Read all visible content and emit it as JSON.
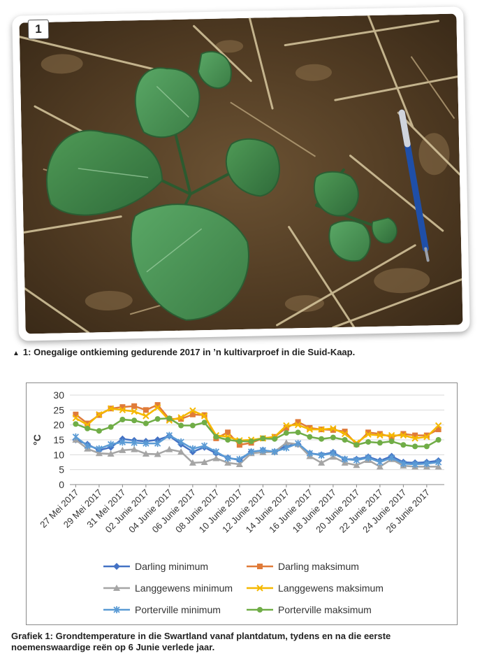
{
  "photo": {
    "number": "1",
    "caption": "1: Onegalige ontkieming gedurende 2017 in ’n kultivarproef in die Suid-Kaap.",
    "caption_marker": "▲"
  },
  "figure_caption": "Grafiek 1: Grondtemperature in die Swartland vanaf plantdatum, tydens en na die eerste noemenswaardige reën op 6 Junie verlede jaar.",
  "chart_data": {
    "type": "line",
    "title": "",
    "xlabel": "",
    "ylabel": "°C",
    "ylim": [
      0,
      30
    ],
    "yticks": [
      0,
      5,
      10,
      15,
      20,
      25,
      30
    ],
    "grid": true,
    "legend_position": "bottom",
    "x_tick_labels": [
      "27 Mei 2017",
      "29 Mei 2017",
      "31 Mei 2017",
      "02 Junie 2017",
      "04 Junie 2017",
      "06 Junie 2017",
      "08 Junie 2017",
      "10 Junie 2017",
      "12 Junie 2017",
      "14 Junie 2017",
      "16 Junie 2017",
      "18 Junie 2017",
      "20 Junie 2017",
      "22 Junie 2017",
      "24 Junie 2017",
      "26 Junie 2017"
    ],
    "x": [
      "2017-05-27",
      "2017-05-28",
      "2017-05-29",
      "2017-05-30",
      "2017-05-31",
      "2017-06-01",
      "2017-06-02",
      "2017-06-03",
      "2017-06-04",
      "2017-06-05",
      "2017-06-06",
      "2017-06-07",
      "2017-06-08",
      "2017-06-09",
      "2017-06-10",
      "2017-06-11",
      "2017-06-12",
      "2017-06-13",
      "2017-06-14",
      "2017-06-15",
      "2017-06-16",
      "2017-06-17",
      "2017-06-18",
      "2017-06-19",
      "2017-06-20",
      "2017-06-21",
      "2017-06-22",
      "2017-06-23",
      "2017-06-24",
      "2017-06-25",
      "2017-06-26",
      "2017-06-27"
    ],
    "series": [
      {
        "name": "Darling minimum",
        "color": "#4472c4",
        "marker": "diamond",
        "values": [
          15,
          13.5,
          11.5,
          12.5,
          15.3,
          14.8,
          14.5,
          15,
          16.3,
          13.5,
          11,
          12.5,
          10.5,
          9,
          8.2,
          11,
          11.5,
          11,
          13,
          13.5,
          10.5,
          10,
          10.8,
          8.5,
          8.5,
          9.3,
          8,
          9.5,
          7.5,
          7.3,
          7.5,
          8
        ]
      },
      {
        "name": "Darling maksimum",
        "color": "#e07b39",
        "marker": "square",
        "values": [
          23.5,
          20.5,
          23.3,
          25.5,
          26,
          26.3,
          25,
          26.7,
          22,
          22,
          23.5,
          23.3,
          15.5,
          17.5,
          13.3,
          14,
          15.5,
          16,
          19,
          21,
          19,
          18.5,
          18.3,
          17.8,
          13.5,
          17.5,
          17,
          16,
          17,
          16.5,
          16.5,
          18.5
        ]
      },
      {
        "name": "Langgewens minimum",
        "color": "#a5a5a5",
        "marker": "triangle",
        "values": [
          15,
          12,
          10.5,
          10.3,
          11.5,
          11.8,
          10.3,
          10.2,
          11.8,
          11,
          7.3,
          7.5,
          8.8,
          7.3,
          6.8,
          10.5,
          10.8,
          11,
          14,
          13.5,
          9.5,
          7.3,
          9.3,
          7.3,
          6.5,
          8.2,
          6,
          8.5,
          6.3,
          6,
          6,
          6
        ]
      },
      {
        "name": "Langgewens maksimum",
        "color": "#f5b800",
        "marker": "x",
        "values": [
          22.3,
          20,
          23.5,
          25.5,
          25,
          24.5,
          23,
          25.8,
          21.5,
          22.5,
          24.8,
          23,
          16.5,
          16,
          14.8,
          15,
          15.5,
          16,
          19.8,
          20,
          18.5,
          18.5,
          18.8,
          17,
          14,
          16.8,
          16.5,
          16.5,
          16.5,
          15.5,
          16,
          19.8
        ]
      },
      {
        "name": "Porterville minimum",
        "color": "#5b9bd5",
        "marker": "star",
        "values": [
          16,
          13,
          12,
          13.5,
          14.2,
          14,
          13.8,
          13.8,
          16.5,
          14.3,
          12,
          13,
          11,
          8.8,
          8.5,
          11,
          11.5,
          11,
          12.3,
          13.8,
          10.5,
          9.8,
          10.5,
          8.5,
          8.2,
          9,
          7.5,
          9,
          7,
          6.8,
          7,
          7.5
        ]
      },
      {
        "name": "Porterville maksimum",
        "color": "#70ad47",
        "marker": "circle",
        "values": [
          20.3,
          18.8,
          18,
          19.3,
          21.8,
          21.5,
          20.5,
          22,
          22.2,
          19.8,
          19.8,
          20.8,
          16,
          15,
          14.5,
          14.5,
          15.5,
          15.3,
          17.3,
          17.5,
          16,
          15.3,
          15.8,
          15,
          13.3,
          14.3,
          14,
          14.5,
          13.3,
          12.8,
          12.8,
          15
        ]
      }
    ]
  }
}
